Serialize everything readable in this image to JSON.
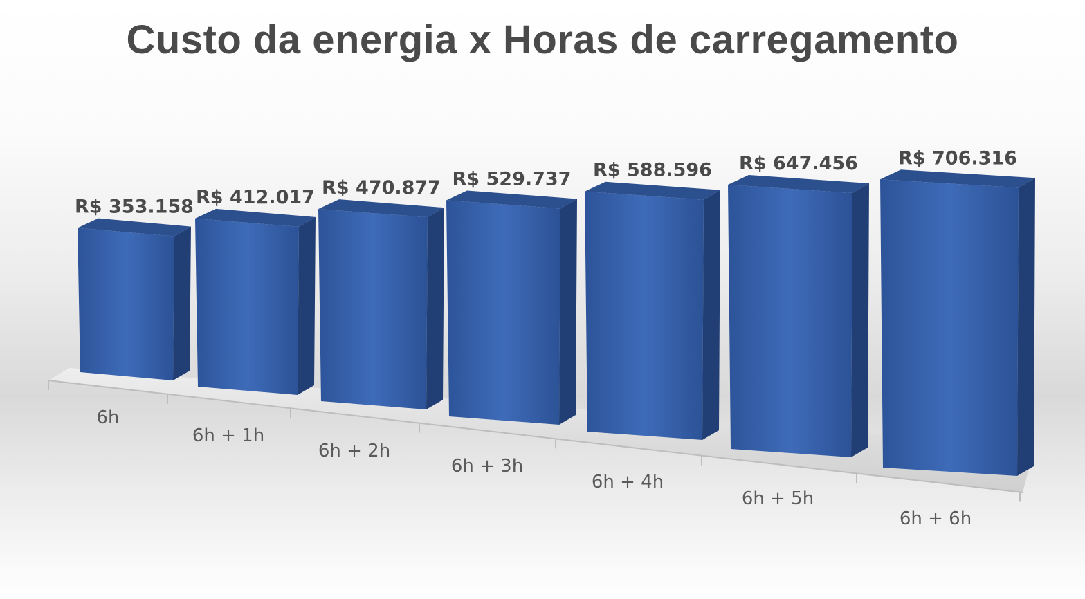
{
  "chart_data": {
    "type": "bar",
    "title": "Custo da energia x Horas de carregamento",
    "categories": [
      "6h",
      "6h + 1h",
      "6h + 2h",
      "6h + 3h",
      "6h + 4h",
      "6h + 5h",
      "6h + 6h"
    ],
    "values": [
      353158,
      412017,
      470877,
      529737,
      588596,
      647456,
      706316
    ],
    "value_labels": [
      "R$ 353.158",
      "R$ 412.017",
      "R$ 470.877",
      "R$ 529.737",
      "R$ 588.596",
      "R$ 647.456",
      "R$ 706.316"
    ],
    "xlabel": "",
    "ylabel": "",
    "grid": false,
    "legend": "none",
    "style": "3d-column"
  },
  "colors": {
    "bar_front": "#3a66b1",
    "bar_side": "#213f75",
    "bar_top": "#2c4f8e",
    "floor": "#dcdcdc",
    "title": "#4a4a4a"
  }
}
